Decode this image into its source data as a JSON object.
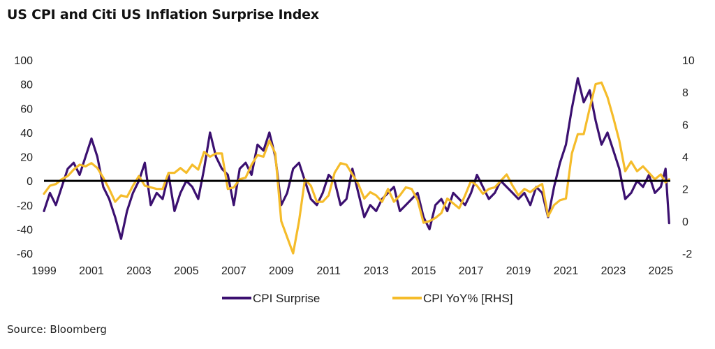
{
  "title": "US CPI and Citi US Inflation Surprise Index",
  "source": "Source: Bloomberg",
  "chart_data": {
    "type": "line",
    "title": "US CPI and Citi US Inflation Surprise Index",
    "x_ticks": [
      "1999",
      "2001",
      "2003",
      "2005",
      "2007",
      "2009",
      "2011",
      "2013",
      "2015",
      "2017",
      "2019",
      "2021",
      "2023",
      "2025"
    ],
    "xlim": [
      1999,
      2025.4
    ],
    "y_left": {
      "ticks": [
        "100",
        "80",
        "60",
        "40",
        "20",
        "0",
        "-20",
        "-40",
        "-60"
      ],
      "ylim": [
        -60,
        100
      ]
    },
    "y_right": {
      "ticks": [
        "10",
        "8",
        "6",
        "4",
        "2",
        "0",
        "-2"
      ],
      "ylim": [
        -2,
        10
      ]
    },
    "zero_line": true,
    "grid": false,
    "legend_position": "bottom-center",
    "colors": {
      "surprise": "#3b1070",
      "cpi": "#f5bc2a",
      "zero": "#000000"
    },
    "series": [
      {
        "name": "CPI Surprise",
        "axis": "left",
        "x": [
          1999.0,
          1999.25,
          1999.5,
          1999.75,
          2000.0,
          2000.25,
          2000.5,
          2000.75,
          2001.0,
          2001.25,
          2001.5,
          2001.75,
          2002.0,
          2002.25,
          2002.5,
          2002.75,
          2003.0,
          2003.25,
          2003.5,
          2003.75,
          2004.0,
          2004.25,
          2004.5,
          2004.75,
          2005.0,
          2005.25,
          2005.5,
          2005.75,
          2006.0,
          2006.25,
          2006.5,
          2006.75,
          2007.0,
          2007.25,
          2007.5,
          2007.75,
          2008.0,
          2008.25,
          2008.5,
          2008.75,
          2009.0,
          2009.25,
          2009.5,
          2009.75,
          2010.0,
          2010.25,
          2010.5,
          2010.75,
          2011.0,
          2011.25,
          2011.5,
          2011.75,
          2012.0,
          2012.25,
          2012.5,
          2012.75,
          2013.0,
          2013.25,
          2013.5,
          2013.75,
          2014.0,
          2014.25,
          2014.5,
          2014.75,
          2015.0,
          2015.25,
          2015.5,
          2015.75,
          2016.0,
          2016.25,
          2016.5,
          2016.75,
          2017.0,
          2017.25,
          2017.5,
          2017.75,
          2018.0,
          2018.25,
          2018.5,
          2018.75,
          2019.0,
          2019.25,
          2019.5,
          2019.75,
          2020.0,
          2020.25,
          2020.5,
          2020.75,
          2021.0,
          2021.25,
          2021.5,
          2021.75,
          2022.0,
          2022.25,
          2022.5,
          2022.75,
          2023.0,
          2023.25,
          2023.5,
          2023.75,
          2024.0,
          2024.25,
          2024.5,
          2024.75,
          2025.0,
          2025.2,
          2025.35
        ],
        "values": [
          -25,
          -10,
          -20,
          -5,
          10,
          15,
          5,
          20,
          35,
          20,
          -5,
          -15,
          -30,
          -48,
          -25,
          -10,
          0,
          15,
          -20,
          -10,
          -15,
          5,
          -25,
          -10,
          0,
          -5,
          -15,
          10,
          40,
          20,
          10,
          5,
          -20,
          10,
          15,
          5,
          30,
          25,
          40,
          20,
          -20,
          -10,
          10,
          15,
          0,
          -15,
          -20,
          -10,
          5,
          0,
          -20,
          -15,
          10,
          -10,
          -30,
          -20,
          -25,
          -15,
          -10,
          -5,
          -25,
          -20,
          -15,
          -10,
          -30,
          -40,
          -20,
          -15,
          -25,
          -10,
          -15,
          -20,
          -10,
          5,
          -5,
          -15,
          -10,
          0,
          -5,
          -10,
          -15,
          -10,
          -20,
          -5,
          -10,
          -30,
          -5,
          15,
          30,
          60,
          85,
          65,
          75,
          50,
          30,
          40,
          25,
          10,
          -15,
          -10,
          0,
          -5,
          5,
          -10,
          -5,
          10,
          -35
        ]
      },
      {
        "name": "CPI YoY% [RHS]",
        "axis": "right",
        "x": [
          1999.0,
          1999.25,
          1999.5,
          1999.75,
          2000.0,
          2000.25,
          2000.5,
          2000.75,
          2001.0,
          2001.25,
          2001.5,
          2001.75,
          2002.0,
          2002.25,
          2002.5,
          2002.75,
          2003.0,
          2003.25,
          2003.5,
          2003.75,
          2004.0,
          2004.25,
          2004.5,
          2004.75,
          2005.0,
          2005.25,
          2005.5,
          2005.75,
          2006.0,
          2006.25,
          2006.5,
          2006.75,
          2007.0,
          2007.25,
          2007.5,
          2007.75,
          2008.0,
          2008.25,
          2008.5,
          2008.75,
          2009.0,
          2009.25,
          2009.5,
          2009.75,
          2010.0,
          2010.25,
          2010.5,
          2010.75,
          2011.0,
          2011.25,
          2011.5,
          2011.75,
          2012.0,
          2012.25,
          2012.5,
          2012.75,
          2013.0,
          2013.25,
          2013.5,
          2013.75,
          2014.0,
          2014.25,
          2014.5,
          2014.75,
          2015.0,
          2015.25,
          2015.5,
          2015.75,
          2016.0,
          2016.25,
          2016.5,
          2016.75,
          2017.0,
          2017.25,
          2017.5,
          2017.75,
          2018.0,
          2018.25,
          2018.5,
          2018.75,
          2019.0,
          2019.25,
          2019.5,
          2019.75,
          2020.0,
          2020.25,
          2020.5,
          2020.75,
          2021.0,
          2021.25,
          2021.5,
          2021.75,
          2022.0,
          2022.25,
          2022.5,
          2022.75,
          2023.0,
          2023.25,
          2023.5,
          2023.75,
          2024.0,
          2024.25,
          2024.5,
          2024.75,
          2025.0,
          2025.2,
          2025.35
        ],
        "values": [
          1.7,
          2.2,
          2.3,
          2.6,
          2.8,
          3.2,
          3.5,
          3.4,
          3.6,
          3.3,
          2.7,
          2.0,
          1.2,
          1.6,
          1.5,
          2.2,
          2.8,
          2.2,
          2.1,
          2.0,
          2.0,
          3.0,
          3.0,
          3.3,
          3.0,
          3.5,
          3.2,
          4.3,
          4.0,
          4.2,
          4.2,
          2.0,
          2.1,
          2.6,
          2.7,
          3.5,
          4.1,
          4.0,
          5.0,
          4.2,
          0.0,
          -1.0,
          -2.0,
          0.0,
          2.6,
          2.2,
          1.2,
          1.2,
          1.6,
          3.0,
          3.6,
          3.5,
          2.9,
          2.3,
          1.4,
          1.8,
          1.6,
          1.2,
          2.0,
          1.2,
          1.6,
          2.1,
          2.0,
          1.3,
          -0.1,
          0.0,
          0.2,
          0.5,
          1.4,
          1.1,
          0.8,
          1.6,
          2.5,
          2.2,
          1.7,
          2.0,
          2.1,
          2.5,
          2.9,
          2.2,
          1.6,
          2.0,
          1.8,
          2.1,
          2.3,
          0.3,
          1.0,
          1.3,
          1.4,
          4.2,
          5.4,
          5.4,
          7.0,
          8.5,
          8.6,
          7.7,
          6.4,
          5.0,
          3.1,
          3.7,
          3.1,
          3.4,
          3.0,
          2.6,
          2.9,
          2.4,
          2.6
        ]
      }
    ]
  }
}
